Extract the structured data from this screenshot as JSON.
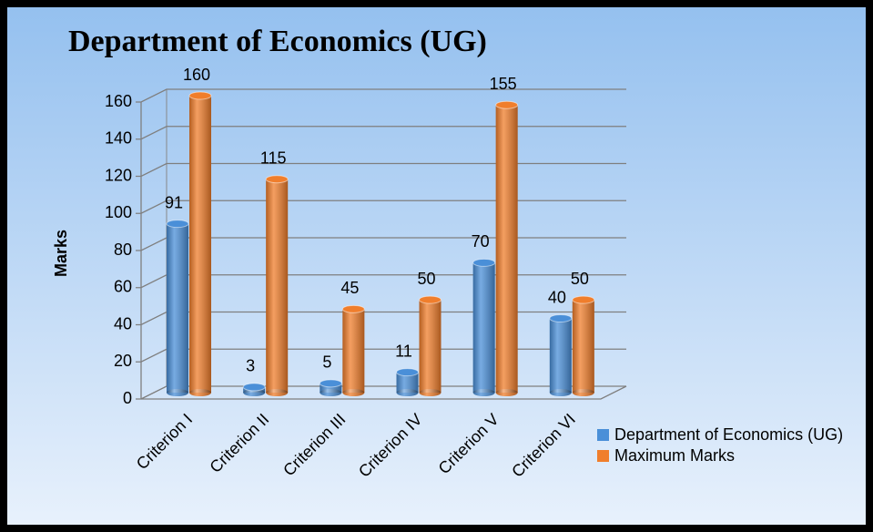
{
  "chart_data": {
    "type": "bar3d",
    "title": "Department of Economics (UG)",
    "y_label": "Marks",
    "categories": [
      "Criterion I",
      "Criterion II",
      "Criterion III",
      "Criterion IV",
      "Criterion V",
      "Criterion VI"
    ],
    "series": [
      {
        "name": "Department of Economics (UG)",
        "color": "#4a8fd8",
        "values": [
          91,
          3,
          5,
          11,
          70,
          40
        ]
      },
      {
        "name": "Maximum Marks",
        "color": "#f07e2c",
        "values": [
          160,
          115,
          45,
          50,
          155,
          50
        ]
      }
    ],
    "ylim": [
      0,
      160
    ],
    "yticks": [
      0,
      20,
      40,
      60,
      80,
      100,
      120,
      140,
      160
    ],
    "grid": true,
    "legend": "bottom-right"
  }
}
